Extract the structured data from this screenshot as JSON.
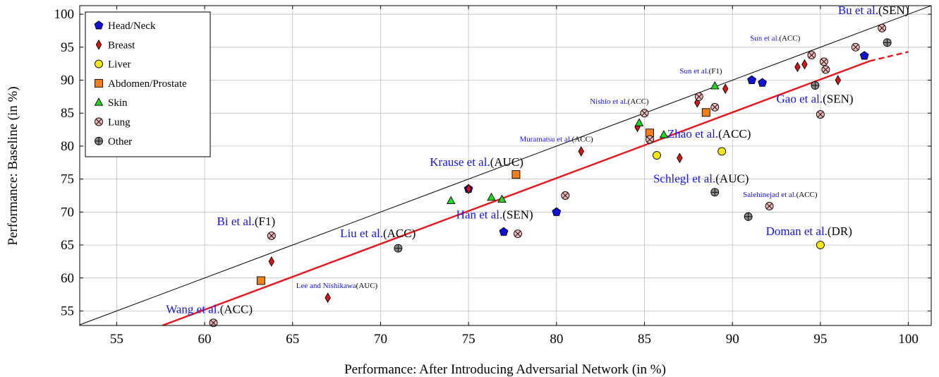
{
  "chart_data": {
    "type": "scatter",
    "title": "",
    "xlabel": "Performance: After Introducing Adversarial Network (in %)",
    "ylabel": "Performance: Baseline (in %)",
    "xlim": [
      52.9,
      101.3
    ],
    "ylim": [
      52.8,
      101.3
    ],
    "xticks": [
      55,
      60,
      65,
      70,
      75,
      80,
      85,
      90,
      95,
      100
    ],
    "yticks": [
      55,
      60,
      65,
      70,
      75,
      80,
      85,
      90,
      95,
      100
    ],
    "grid": true,
    "legend_position": "top-left",
    "reference_line": {
      "description": "y = x",
      "color": "#000000"
    },
    "trend_line": {
      "color": "#e8131b",
      "points": [
        [
          57.6,
          52.8
        ],
        [
          97.8,
          92.9
        ],
        [
          100.0,
          94.3
        ]
      ],
      "dashed_from_x": 97.8
    },
    "series": [
      {
        "name": "Head/Neck",
        "marker": "pentagon",
        "color": "#1010d8",
        "points": [
          [
            75.0,
            73.5
          ],
          [
            77.0,
            67.0
          ],
          [
            80.0,
            70.0
          ],
          [
            91.1,
            90.0
          ],
          [
            91.7,
            89.6
          ],
          [
            97.5,
            93.7
          ]
        ]
      },
      {
        "name": "Breast",
        "marker": "diamond",
        "color": "#d81414",
        "points": [
          [
            63.8,
            62.5
          ],
          [
            67.0,
            57.0
          ],
          [
            75.0,
            73.5
          ],
          [
            81.4,
            79.2
          ],
          [
            84.6,
            82.9
          ],
          [
            87.0,
            78.2
          ],
          [
            88.0,
            86.6
          ],
          [
            89.6,
            88.7
          ],
          [
            93.7,
            92.0
          ],
          [
            94.1,
            92.4
          ],
          [
            96.0,
            90.0
          ]
        ]
      },
      {
        "name": "Liver",
        "marker": "circle",
        "color": "#f5e616",
        "points": [
          [
            85.7,
            78.6
          ],
          [
            89.4,
            79.2
          ],
          [
            95.0,
            65.0
          ]
        ]
      },
      {
        "name": "Abdomen/Prostate",
        "marker": "square",
        "color": "#f47f1a",
        "points": [
          [
            63.2,
            59.6
          ],
          [
            77.7,
            75.7
          ],
          [
            85.3,
            82.0
          ],
          [
            88.5,
            85.1
          ]
        ]
      },
      {
        "name": "Skin",
        "marker": "triangle",
        "color": "#1ed81e",
        "points": [
          [
            74.0,
            71.7
          ],
          [
            76.3,
            72.2
          ],
          [
            76.9,
            71.9
          ],
          [
            84.7,
            83.5
          ],
          [
            86.1,
            81.7
          ],
          [
            89.0,
            89.1
          ]
        ]
      },
      {
        "name": "Lung",
        "marker": "circle-cross",
        "color": "#f0b7b7",
        "points": [
          [
            60.5,
            53.2
          ],
          [
            63.8,
            66.4
          ],
          [
            77.8,
            66.7
          ],
          [
            80.5,
            72.5
          ],
          [
            85.0,
            85.0
          ],
          [
            85.3,
            81.0
          ],
          [
            88.1,
            87.5
          ],
          [
            89.0,
            85.9
          ],
          [
            92.1,
            70.9
          ],
          [
            94.5,
            93.8
          ],
          [
            95.0,
            84.8
          ],
          [
            95.2,
            92.8
          ],
          [
            95.3,
            91.6
          ],
          [
            97.0,
            95.0
          ],
          [
            98.5,
            97.9
          ]
        ]
      },
      {
        "name": "Other",
        "marker": "circle-plus",
        "color": "#8c8c8c",
        "points": [
          [
            71.0,
            64.5
          ],
          [
            89.0,
            73.0
          ],
          [
            90.9,
            69.3
          ],
          [
            94.7,
            89.2
          ],
          [
            98.8,
            95.7
          ]
        ]
      }
    ],
    "annotations": [
      {
        "name": "Bu et al.",
        "metric": "(SEN)",
        "x": 96.0,
        "y": 100.0,
        "size": "large"
      },
      {
        "name": "Sun et al.",
        "metric": "(ACC)",
        "x": 91.0,
        "y": 96.0,
        "size": "small"
      },
      {
        "name": "Sun et al.",
        "metric": "(F1)",
        "x": 87.0,
        "y": 91.0,
        "size": "small"
      },
      {
        "name": "Gao et al.",
        "metric": "(SEN)",
        "x": 92.5,
        "y": 86.6,
        "size": "large"
      },
      {
        "name": "Nishio et al.",
        "metric": "(ACC)",
        "x": 81.9,
        "y": 86.4,
        "size": "small"
      },
      {
        "name": "Zhao et al.",
        "metric": "(ACC)",
        "x": 86.3,
        "y": 81.3,
        "size": "large"
      },
      {
        "name": "Muramatsu et al.",
        "metric": "(ACC)",
        "x": 77.9,
        "y": 80.7,
        "size": "small"
      },
      {
        "name": "Krause et al.",
        "metric": "(AUC)",
        "x": 72.8,
        "y": 77.0,
        "size": "large"
      },
      {
        "name": "Schlegl et al.",
        "metric": "(AUC)",
        "x": 85.5,
        "y": 74.5,
        "size": "large"
      },
      {
        "name": "Salehinejad et al.",
        "metric": "(ACC)",
        "x": 90.6,
        "y": 72.3,
        "size": "small"
      },
      {
        "name": "Han et al.",
        "metric": "(SEN)",
        "x": 74.3,
        "y": 69.0,
        "size": "large"
      },
      {
        "name": "Bi et al.",
        "metric": "(F1)",
        "x": 60.7,
        "y": 68.0,
        "size": "large"
      },
      {
        "name": "Liu et al.",
        "metric": "(ACC)",
        "x": 67.7,
        "y": 66.2,
        "size": "large"
      },
      {
        "name": "Doman et al.",
        "metric": "(DR)",
        "x": 91.9,
        "y": 66.5,
        "size": "large"
      },
      {
        "name": "Lee and Nishikawa",
        "metric": "(AUC)",
        "x": 65.2,
        "y": 58.5,
        "size": "small"
      },
      {
        "name": "Wang et al.",
        "metric": "(ACC)",
        "x": 57.8,
        "y": 54.7,
        "size": "large"
      }
    ],
    "colors": {
      "name_text": "#1414e6",
      "metric_text": "#000000",
      "grid": "#b5b5b5",
      "axis": "#000000"
    }
  }
}
